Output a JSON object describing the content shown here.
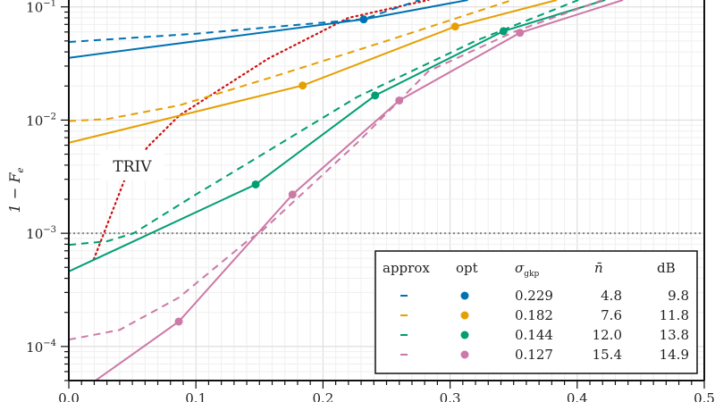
{
  "chart_data": {
    "type": "line",
    "ylabel": "1 − F",
    "ylabel_sub": "e",
    "xlim": [
      0,
      0.5
    ],
    "ylim": [
      5e-05,
      0.115
    ],
    "yscale": "log",
    "grid": true,
    "xticks": [
      "0.0",
      "0.1",
      "0.2",
      "0.3",
      "0.4",
      "0.5"
    ],
    "yticks": [
      {
        "base": "10",
        "exp": "−1"
      },
      {
        "base": "10",
        "exp": "−2"
      },
      {
        "base": "10",
        "exp": "−3"
      },
      {
        "base": "10",
        "exp": "−4"
      }
    ],
    "threshold": 0.001,
    "triv": {
      "label": "TRIV",
      "color": "#cc1111",
      "x": [
        0.0197,
        0.044,
        0.062,
        0.087,
        0.157,
        0.22,
        0.283
      ],
      "y": [
        0.00059,
        0.003,
        0.0058,
        0.011,
        0.035,
        0.08,
        0.115
      ]
    },
    "series": [
      {
        "color": "#0072b2",
        "approx": {
          "x": [
            0,
            0.1,
            0.232,
            0.276
          ],
          "y": [
            0.049,
            0.058,
            0.078,
            0.115
          ]
        },
        "opt": {
          "x": [
            0,
            0.232,
            0.314
          ],
          "y": [
            0.0355,
            0.0776,
            0.115
          ]
        },
        "markers": {
          "x": [
            0.232
          ],
          "y": [
            0.0776
          ]
        }
      },
      {
        "color": "#e69f00",
        "approx": {
          "x": [
            0,
            0.03,
            0.087,
            0.157,
            0.25,
            0.349
          ],
          "y": [
            0.0098,
            0.0102,
            0.0135,
            0.0234,
            0.05,
            0.115
          ]
        },
        "opt": {
          "x": [
            0,
            0.184,
            0.304,
            0.384
          ],
          "y": [
            0.0063,
            0.0202,
            0.067,
            0.115
          ]
        },
        "markers": {
          "x": [
            0.184,
            0.304
          ],
          "y": [
            0.0202,
            0.067
          ]
        }
      },
      {
        "color": "#009e73",
        "approx": {
          "x": [
            0,
            0.03,
            0.051,
            0.1,
            0.143,
            0.227,
            0.32,
            0.401
          ],
          "y": [
            0.00079,
            0.00085,
            0.001,
            0.0022,
            0.0043,
            0.016,
            0.05,
            0.115
          ]
        },
        "opt": {
          "x": [
            0,
            0.147,
            0.241,
            0.342,
            0.422
          ],
          "y": [
            0.00046,
            0.0027,
            0.0165,
            0.061,
            0.115
          ]
        },
        "markers": {
          "x": [
            0.147,
            0.241,
            0.342
          ],
          "y": [
            0.0027,
            0.0165,
            0.061
          ]
        }
      },
      {
        "color": "#cc79a7",
        "approx": {
          "x": [
            0,
            0.04,
            0.0865,
            0.143,
            0.15,
            0.227,
            0.283,
            0.35,
            0.42
          ],
          "y": [
            0.000115,
            0.00014,
            0.00027,
            0.0009,
            0.001,
            0.0063,
            0.027,
            0.06,
            0.115
          ]
        },
        "opt": {
          "x": [
            0.021,
            0.0865,
            0.176,
            0.26,
            0.355,
            0.436
          ],
          "y": [
            5e-05,
            0.000166,
            0.0022,
            0.0149,
            0.059,
            0.115
          ]
        },
        "markers": {
          "x": [
            0.0865,
            0.176,
            0.26,
            0.355
          ],
          "y": [
            0.000166,
            0.0022,
            0.0149,
            0.059
          ]
        }
      }
    ],
    "legend": {
      "placement": "bottom-right",
      "headers": {
        "approx": "approx",
        "opt": "opt",
        "sigma": "σ",
        "sigma_sub": "gkp",
        "nbar": "n̄",
        "db": "dB"
      },
      "rows": [
        {
          "sigma": "0.229",
          "nbar": "4.8",
          "db": "9.8"
        },
        {
          "sigma": "0.182",
          "nbar": "7.6",
          "db": "11.8"
        },
        {
          "sigma": "0.144",
          "nbar": "12.0",
          "db": "13.8"
        },
        {
          "sigma": "0.127",
          "nbar": "15.4",
          "db": "14.9"
        }
      ]
    }
  }
}
